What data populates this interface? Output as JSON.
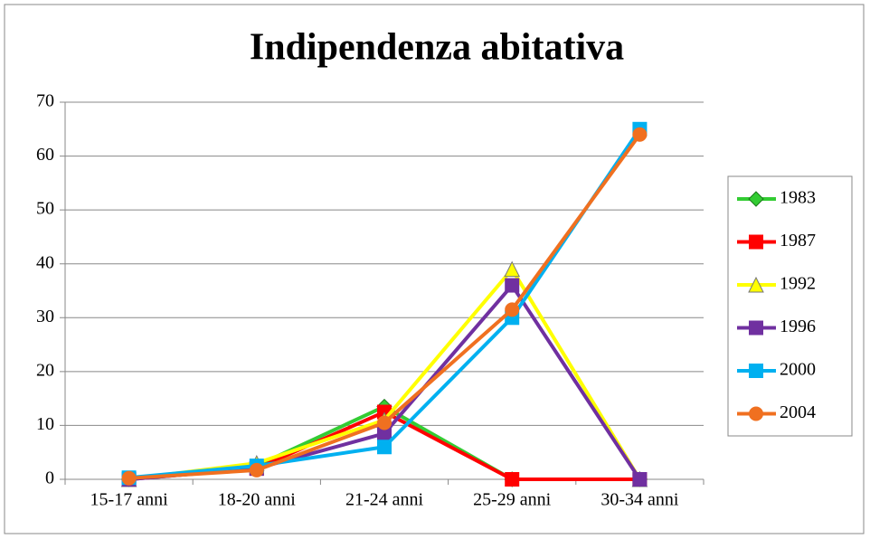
{
  "chart_data": {
    "type": "line",
    "title": "Indipendenza abitativa",
    "categories": [
      "15-17 anni",
      "18-20 anni",
      "21-24 anni",
      "25-29 anni",
      "30-34 anni"
    ],
    "series": [
      {
        "name": "1983",
        "color": "#33cc33",
        "marker": "diamond",
        "values": [
          0,
          2.5,
          13.5,
          0,
          0
        ]
      },
      {
        "name": "1987",
        "color": "#ff0000",
        "marker": "square",
        "values": [
          0,
          2,
          12.5,
          0,
          0
        ]
      },
      {
        "name": "1992",
        "color": "#ffff00",
        "marker": "triangle",
        "values": [
          0,
          3,
          11,
          39,
          0
        ]
      },
      {
        "name": "1996",
        "color": "#7030a0",
        "marker": "square",
        "values": [
          0,
          2,
          8.5,
          36,
          0
        ]
      },
      {
        "name": "2000",
        "color": "#00b0f0",
        "marker": "square",
        "values": [
          0.3,
          2.5,
          6,
          30,
          65
        ]
      },
      {
        "name": "2004",
        "color": "#f07020",
        "marker": "circle",
        "values": [
          0.2,
          1.7,
          10.5,
          31.5,
          64
        ]
      }
    ],
    "ylim": [
      0,
      70
    ],
    "yticks": [
      0,
      10,
      20,
      30,
      40,
      50,
      60,
      70
    ],
    "grid": true,
    "legend": "right"
  }
}
